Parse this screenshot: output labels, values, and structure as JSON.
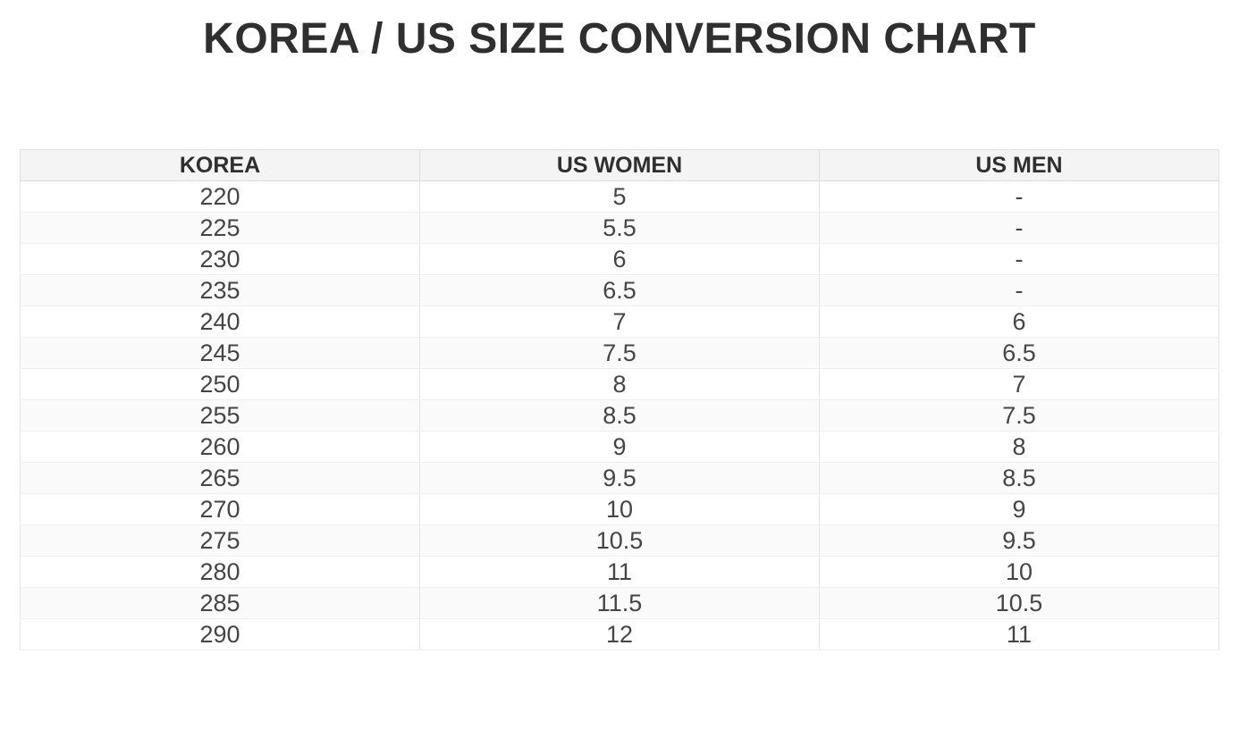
{
  "page": {
    "title": "KOREA / US SIZE CONVERSION CHART"
  },
  "chart_data": {
    "type": "table",
    "title": "KOREA / US SIZE CONVERSION CHART",
    "columns": [
      "KOREA",
      "US WOMEN",
      "US MEN"
    ],
    "rows": [
      [
        "220",
        "5",
        "-"
      ],
      [
        "225",
        "5.5",
        "-"
      ],
      [
        "230",
        "6",
        "-"
      ],
      [
        "235",
        "6.5",
        "-"
      ],
      [
        "240",
        "7",
        "6"
      ],
      [
        "245",
        "7.5",
        "6.5"
      ],
      [
        "250",
        "8",
        "7"
      ],
      [
        "255",
        "8.5",
        "7.5"
      ],
      [
        "260",
        "9",
        "8"
      ],
      [
        "265",
        "9.5",
        "8.5"
      ],
      [
        "270",
        "10",
        "9"
      ],
      [
        "275",
        "10.5",
        "9.5"
      ],
      [
        "280",
        "11",
        "10"
      ],
      [
        "285",
        "11.5",
        "10.5"
      ],
      [
        "290",
        "12",
        "11"
      ]
    ],
    "layout": {
      "header_background": "#f4f4f4",
      "stripe_background": "#fafafa",
      "row_background": "#ffffff",
      "border_color": "#e5e5e5",
      "cell_text_color": "#454545",
      "header_text_color": "#2f2f2f",
      "title_color": "#2f2f2f",
      "alignment": "center"
    }
  }
}
